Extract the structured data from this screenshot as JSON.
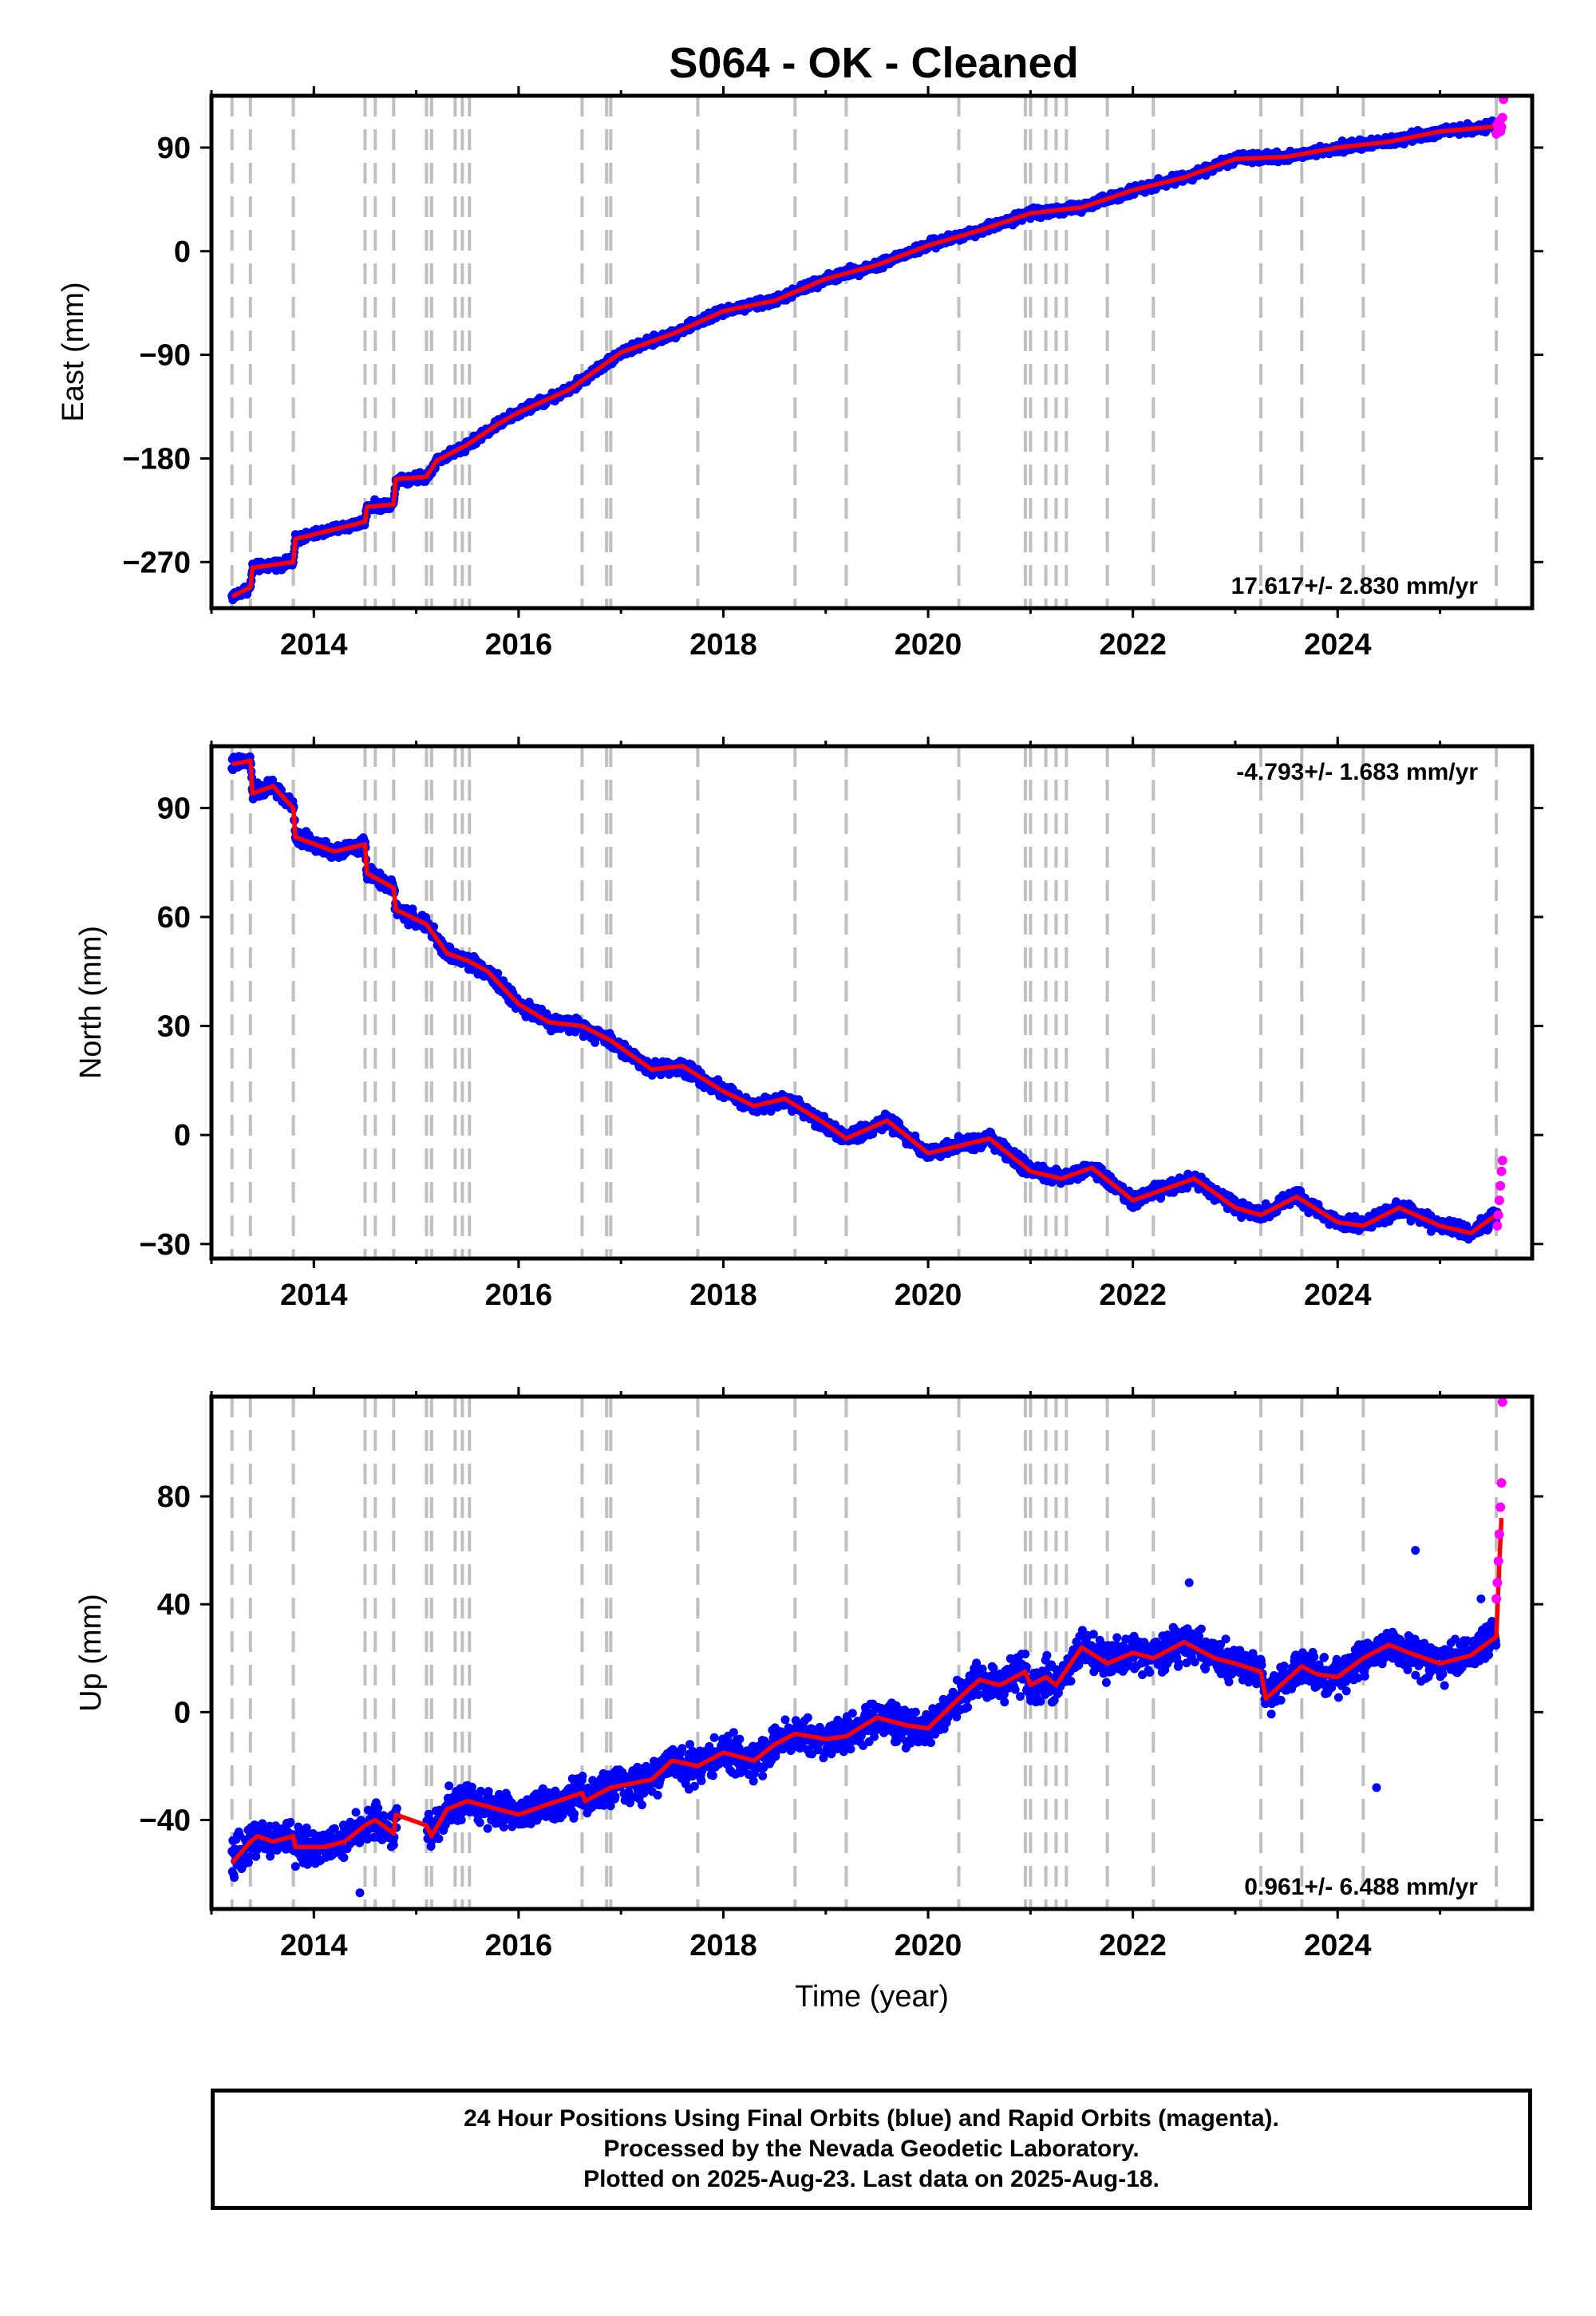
{
  "title": "S064  - OK - Cleaned",
  "footer": {
    "line1": "24 Hour Positions Using Final Orbits (blue) and Rapid Orbits (magenta).",
    "line2": "Processed by the Nevada Geodetic Laboratory.",
    "line3": "Plotted on 2025-Aug-23. Last data on 2025-Aug-18."
  },
  "chart_data": [
    {
      "type": "scatter",
      "panel": "east",
      "ylabel": "East (mm)",
      "xlabel": "",
      "xlim": [
        2013.0,
        2025.9
      ],
      "ylim": [
        -310,
        135
      ],
      "xticks": [
        2014,
        2016,
        2018,
        2020,
        2022,
        2024
      ],
      "yticks": [
        90,
        0,
        -90,
        -180,
        -270
      ],
      "ytick_labels": [
        "90",
        "0",
        "−90",
        "−180",
        "−270"
      ],
      "rate_label": "17.617+/- 2.830 mm/yr",
      "rate_position": "bottom-right",
      "noise": 3,
      "model_line": {
        "name": "",
        "color": "#ff0000",
        "x": [
          2013.2,
          2013.38,
          2013.4,
          2013.8,
          2013.82,
          2014.5,
          2014.52,
          2014.78,
          2014.8,
          2015.1,
          2015.2,
          2015.5,
          2015.8,
          2016.0,
          2016.5,
          2017.0,
          2017.5,
          2018.0,
          2018.5,
          2019.0,
          2019.5,
          2020.0,
          2020.5,
          2021.0,
          2021.5,
          2022.0,
          2022.5,
          2023.0,
          2023.5,
          2024.0,
          2024.5,
          2025.0,
          2025.5,
          2025.6
        ],
        "y": [
          -300,
          -292,
          -275,
          -270,
          -250,
          -235,
          -222,
          -220,
          -198,
          -196,
          -182,
          -168,
          -150,
          -140,
          -120,
          -88,
          -72,
          -52,
          -43,
          -24,
          -12,
          5,
          18,
          33,
          38,
          53,
          64,
          80,
          82,
          90,
          95,
          104,
          108,
          110
        ]
      },
      "rapid_points": {
        "color": "#ff00ff",
        "x": [
          2025.55,
          2025.56,
          2025.57,
          2025.58,
          2025.59,
          2025.6,
          2025.61,
          2025.62
        ],
        "y": [
          102,
          110,
          107,
          113,
          104,
          108,
          116,
          132
        ]
      },
      "final_points_color": "#0000ff",
      "discontinuities": [
        2013.2,
        2013.38,
        2013.8,
        2014.5,
        2014.6,
        2014.78,
        2015.1,
        2015.15,
        2015.38,
        2015.45,
        2015.52,
        2016.62,
        2016.86,
        2016.9,
        2017.75,
        2018.7,
        2019.2,
        2020.3,
        2020.95,
        2021.0,
        2021.15,
        2021.25,
        2021.35,
        2021.75,
        2022.2,
        2023.25,
        2023.65,
        2024.25,
        2025.55
      ]
    },
    {
      "type": "scatter",
      "panel": "north",
      "ylabel": "North (mm)",
      "xlabel": "",
      "xlim": [
        2013.0,
        2025.9
      ],
      "ylim": [
        -34,
        107
      ],
      "xticks": [
        2014,
        2016,
        2018,
        2020,
        2022,
        2024
      ],
      "yticks": [
        90,
        60,
        30,
        0,
        -30
      ],
      "ytick_labels": [
        "90",
        "60",
        "30",
        "0",
        "−30"
      ],
      "rate_label": "-4.793+/- 1.683 mm/yr",
      "rate_position": "top-right",
      "noise": 1.5,
      "model_line": {
        "name": "",
        "color": "#ff0000",
        "x": [
          2013.2,
          2013.38,
          2013.4,
          2013.6,
          2013.8,
          2013.82,
          2014.2,
          2014.5,
          2014.52,
          2014.78,
          2014.8,
          2015.1,
          2015.3,
          2015.5,
          2015.7,
          2016.0,
          2016.3,
          2016.62,
          2016.9,
          2017.3,
          2017.6,
          2018.0,
          2018.3,
          2018.6,
          2019.0,
          2019.2,
          2019.6,
          2020.0,
          2020.3,
          2020.6,
          2021.0,
          2021.3,
          2021.6,
          2022.0,
          2022.3,
          2022.6,
          2023.0,
          2023.25,
          2023.6,
          2024.0,
          2024.25,
          2024.6,
          2025.0,
          2025.3,
          2025.55
        ],
        "y": [
          102,
          103,
          94,
          96,
          90,
          82,
          78,
          80,
          72,
          68,
          62,
          58,
          50,
          48,
          45,
          36,
          31,
          30,
          26,
          18,
          19,
          12,
          8,
          10,
          3,
          -1,
          4,
          -5,
          -3,
          -1,
          -10,
          -12,
          -9,
          -18,
          -15,
          -12,
          -20,
          -22,
          -17,
          -24,
          -25,
          -20,
          -25,
          -27,
          -22
        ]
      },
      "rapid_points": {
        "color": "#ff00ff",
        "x": [
          2025.56,
          2025.57,
          2025.58,
          2025.59,
          2025.6,
          2025.61
        ],
        "y": [
          -25,
          -22,
          -18,
          -14,
          -10,
          -7
        ]
      },
      "final_points_color": "#0000ff",
      "discontinuities": [
        2013.2,
        2013.38,
        2013.8,
        2014.5,
        2014.6,
        2014.78,
        2015.1,
        2015.15,
        2015.38,
        2015.45,
        2015.52,
        2016.62,
        2016.86,
        2016.9,
        2017.75,
        2018.7,
        2019.2,
        2020.3,
        2020.95,
        2021.0,
        2021.15,
        2021.25,
        2021.35,
        2021.75,
        2022.2,
        2023.25,
        2023.65,
        2024.25,
        2025.55
      ]
    },
    {
      "type": "scatter",
      "panel": "up",
      "ylabel": "Up (mm)",
      "xlabel": "Time (year)",
      "xlim": [
        2013.0,
        2025.9
      ],
      "ylim": [
        -73,
        117
      ],
      "xticks": [
        2014,
        2016,
        2018,
        2020,
        2022,
        2024
      ],
      "yticks": [
        80,
        40,
        0,
        -40
      ],
      "ytick_labels": [
        "80",
        "40",
        "0",
        "−40"
      ],
      "rate_label": "0.961+/- 6.488 mm/yr",
      "rate_position": "bottom-right",
      "noise": 5,
      "model_line": {
        "name": "",
        "color": "#ff0000",
        "x": [
          2013.2,
          2013.38,
          2013.45,
          2013.6,
          2013.8,
          2013.82,
          2014.1,
          2014.3,
          2014.5,
          2014.6,
          2014.78,
          2014.8,
          2015.1,
          2015.15,
          2015.3,
          2015.5,
          2015.7,
          2016.0,
          2016.3,
          2016.62,
          2016.65,
          2016.9,
          2017.3,
          2017.5,
          2017.75,
          2018.0,
          2018.3,
          2018.5,
          2018.7,
          2019.0,
          2019.2,
          2019.5,
          2019.8,
          2020.0,
          2020.3,
          2020.5,
          2020.7,
          2020.95,
          2021.0,
          2021.15,
          2021.25,
          2021.5,
          2021.75,
          2022.0,
          2022.2,
          2022.5,
          2022.8,
          2023.0,
          2023.25,
          2023.3,
          2023.65,
          2023.8,
          2024.0,
          2024.25,
          2024.5,
          2024.7,
          2025.0,
          2025.3,
          2025.55,
          2025.58,
          2025.6
        ],
        "y": [
          -56,
          -48,
          -46,
          -48,
          -46,
          -50,
          -50,
          -48,
          -42,
          -40,
          -45,
          -38,
          -42,
          -46,
          -36,
          -33,
          -35,
          -38,
          -34,
          -30,
          -33,
          -28,
          -25,
          -18,
          -20,
          -15,
          -18,
          -12,
          -8,
          -10,
          -9,
          -2,
          -5,
          -6,
          5,
          12,
          10,
          15,
          10,
          13,
          10,
          24,
          18,
          22,
          20,
          26,
          20,
          18,
          15,
          5,
          17,
          14,
          13,
          20,
          25,
          22,
          18,
          21,
          28,
          55,
          72
        ]
      },
      "rapid_points": {
        "color": "#ff00ff",
        "x": [
          2025.55,
          2025.56,
          2025.57,
          2025.58,
          2025.59,
          2025.6,
          2025.61
        ],
        "y": [
          42,
          48,
          56,
          66,
          76,
          85,
          115
        ]
      },
      "final_points_color": "#0000ff",
      "discontinuities": [
        2013.2,
        2013.38,
        2013.8,
        2014.5,
        2014.6,
        2014.78,
        2015.1,
        2015.15,
        2015.38,
        2015.45,
        2015.52,
        2016.62,
        2016.86,
        2016.9,
        2017.75,
        2018.7,
        2019.2,
        2020.3,
        2020.95,
        2021.0,
        2021.15,
        2021.25,
        2021.35,
        2021.75,
        2022.2,
        2023.25,
        2023.65,
        2024.25,
        2025.55
      ]
    }
  ]
}
